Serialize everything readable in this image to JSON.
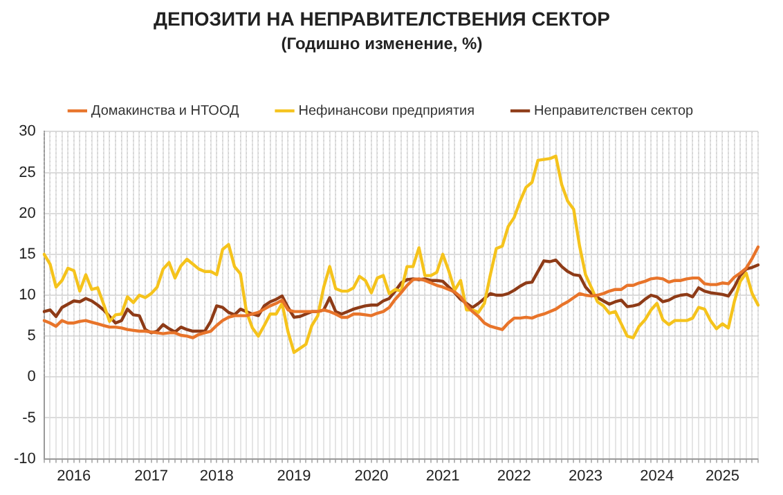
{
  "chart_data": {
    "type": "line",
    "title": "ДЕПОЗИТИ НА НЕПРАВИТЕЛСТВЕНИЯ СЕКТОР",
    "subtitle": "(Годишно изменение, %)",
    "categories": [
      null,
      null,
      null,
      null,
      null,
      "2016",
      null,
      null,
      null,
      null,
      null,
      null,
      null,
      null,
      null,
      null,
      null,
      null,
      "2017",
      null,
      null,
      null,
      null,
      null,
      null,
      null,
      null,
      null,
      null,
      "2018",
      null,
      null,
      null,
      null,
      null,
      null,
      null,
      null,
      null,
      null,
      null,
      null,
      "2019",
      null,
      null,
      null,
      null,
      null,
      null,
      null,
      null,
      null,
      null,
      null,
      null,
      "2020",
      null,
      null,
      null,
      null,
      null,
      null,
      null,
      null,
      null,
      null,
      null,
      "2021",
      null,
      null,
      null,
      null,
      null,
      null,
      null,
      null,
      null,
      null,
      null,
      "2022",
      null,
      null,
      null,
      null,
      null,
      null,
      null,
      null,
      null,
      null,
      null,
      "2023",
      null,
      null,
      null,
      null,
      null,
      null,
      null,
      null,
      null,
      null,
      null,
      "2024",
      null,
      null,
      null,
      null,
      null,
      null,
      null,
      null,
      null,
      null,
      "2025",
      null,
      null,
      null,
      null,
      null,
      null
    ],
    "series": [
      {
        "name": "Домакинства и НТООД",
        "color": "#e8742a",
        "values": [
          6.9,
          6.6,
          6.2,
          6.9,
          6.6,
          6.6,
          6.8,
          6.9,
          6.7,
          6.5,
          6.3,
          6.1,
          6.1,
          6.0,
          5.8,
          5.7,
          5.6,
          5.6,
          5.5,
          5.4,
          5.3,
          5.4,
          5.4,
          5.1,
          5.0,
          4.8,
          5.2,
          5.4,
          5.6,
          6.3,
          6.9,
          7.3,
          7.5,
          7.5,
          7.5,
          7.7,
          7.9,
          8.3,
          8.7,
          9.0,
          9.4,
          8.2,
          8.0,
          8.0,
          8.0,
          8.0,
          8.0,
          8.2,
          8.0,
          7.7,
          7.3,
          7.3,
          7.7,
          7.7,
          7.6,
          7.5,
          7.8,
          8.0,
          8.5,
          9.5,
          10.3,
          11.2,
          11.9,
          12.0,
          11.8,
          11.5,
          11.2,
          11.0,
          10.7,
          10.4,
          9.8,
          8.8,
          8.0,
          7.4,
          6.6,
          6.2,
          6.0,
          5.8,
          6.6,
          7.2,
          7.2,
          7.3,
          7.2,
          7.5,
          7.7,
          8.0,
          8.3,
          8.8,
          9.2,
          9.7,
          10.2,
          10.0,
          9.9,
          10.0,
          10.2,
          10.5,
          10.7,
          10.7,
          11.2,
          11.2,
          11.5,
          11.7,
          12.0,
          12.1,
          12.0,
          11.6,
          11.8,
          11.8,
          12.0,
          12.1,
          12.1,
          11.4,
          11.3,
          11.3,
          11.5,
          11.4,
          12.2,
          12.7,
          13.3,
          14.5,
          15.9
        ]
      },
      {
        "name": "Нефинансови предприятия",
        "color": "#f5c31c",
        "values": [
          15.0,
          13.8,
          11.0,
          11.8,
          13.3,
          13.0,
          10.5,
          12.5,
          10.7,
          10.9,
          8.9,
          6.8,
          7.6,
          7.7,
          9.8,
          9.1,
          10.0,
          9.7,
          10.2,
          11.0,
          13.2,
          14.0,
          12.1,
          13.6,
          14.4,
          13.8,
          13.2,
          12.9,
          12.9,
          12.5,
          15.6,
          16.2,
          13.5,
          12.6,
          8.0,
          6.0,
          5.0,
          6.3,
          7.7,
          7.7,
          9.0,
          5.5,
          3.0,
          3.5,
          4.0,
          6.3,
          7.5,
          11.0,
          13.5,
          10.8,
          10.5,
          10.5,
          10.9,
          12.3,
          11.8,
          10.3,
          12.1,
          12.4,
          10.2,
          10.7,
          10.5,
          13.5,
          13.5,
          15.8,
          12.4,
          12.4,
          12.8,
          15.0,
          13.0,
          10.6,
          11.8,
          8.2,
          8.2,
          7.9,
          9.0,
          12.5,
          15.7,
          16.0,
          18.4,
          19.5,
          21.5,
          23.2,
          23.8,
          26.5,
          26.6,
          26.7,
          27.0,
          23.5,
          21.5,
          20.5,
          16.0,
          12.5,
          10.9,
          9.2,
          8.7,
          7.8,
          8.0,
          6.5,
          5.0,
          4.8,
          6.2,
          7.0,
          8.2,
          9.0,
          7.0,
          6.4,
          6.9,
          6.9,
          6.9,
          7.2,
          8.5,
          8.3,
          6.9,
          5.9,
          6.5,
          6.0,
          9.2,
          11.7,
          12.7,
          10.2,
          8.8
        ]
      },
      {
        "name": "Неправителствен сектор",
        "color": "#8e3b17",
        "values": [
          8.0,
          8.2,
          7.4,
          8.5,
          8.9,
          9.3,
          9.2,
          9.6,
          9.3,
          8.8,
          8.2,
          7.4,
          6.6,
          6.9,
          8.3,
          7.6,
          7.5,
          5.8,
          5.4,
          5.6,
          6.4,
          5.9,
          5.5,
          6.1,
          5.8,
          5.6,
          5.6,
          5.6,
          6.8,
          8.7,
          8.5,
          7.9,
          7.6,
          8.3,
          8.0,
          7.7,
          7.5,
          8.7,
          9.2,
          9.5,
          9.9,
          8.5,
          7.3,
          7.4,
          7.7,
          8.0,
          8.0,
          8.2,
          9.7,
          8.0,
          7.7,
          8.0,
          8.3,
          8.5,
          8.7,
          8.8,
          8.8,
          9.3,
          9.6,
          10.5,
          11.5,
          11.9,
          12.0,
          11.9,
          12.0,
          11.8,
          11.8,
          11.7,
          11.0,
          10.3,
          9.5,
          9.0,
          8.5,
          9.0,
          9.6,
          10.2,
          10.0,
          10.0,
          10.2,
          10.6,
          11.1,
          11.5,
          11.6,
          12.9,
          14.2,
          14.1,
          14.3,
          13.5,
          12.9,
          12.5,
          12.4,
          11.0,
          10.2,
          9.7,
          9.3,
          8.9,
          9.2,
          9.4,
          8.6,
          8.7,
          8.9,
          9.5,
          10.0,
          9.8,
          9.2,
          9.4,
          9.8,
          10.0,
          10.1,
          9.8,
          10.9,
          10.5,
          10.3,
          10.2,
          10.1,
          9.9,
          11.0,
          12.4,
          13.2,
          13.4,
          13.7
        ]
      }
    ],
    "ylim": [
      -10,
      30
    ],
    "yticks": [
      -10,
      -5,
      0,
      5,
      10,
      15,
      20,
      25,
      30
    ],
    "grid": true,
    "legend": "top",
    "marker": "none",
    "line_style": "solid"
  }
}
